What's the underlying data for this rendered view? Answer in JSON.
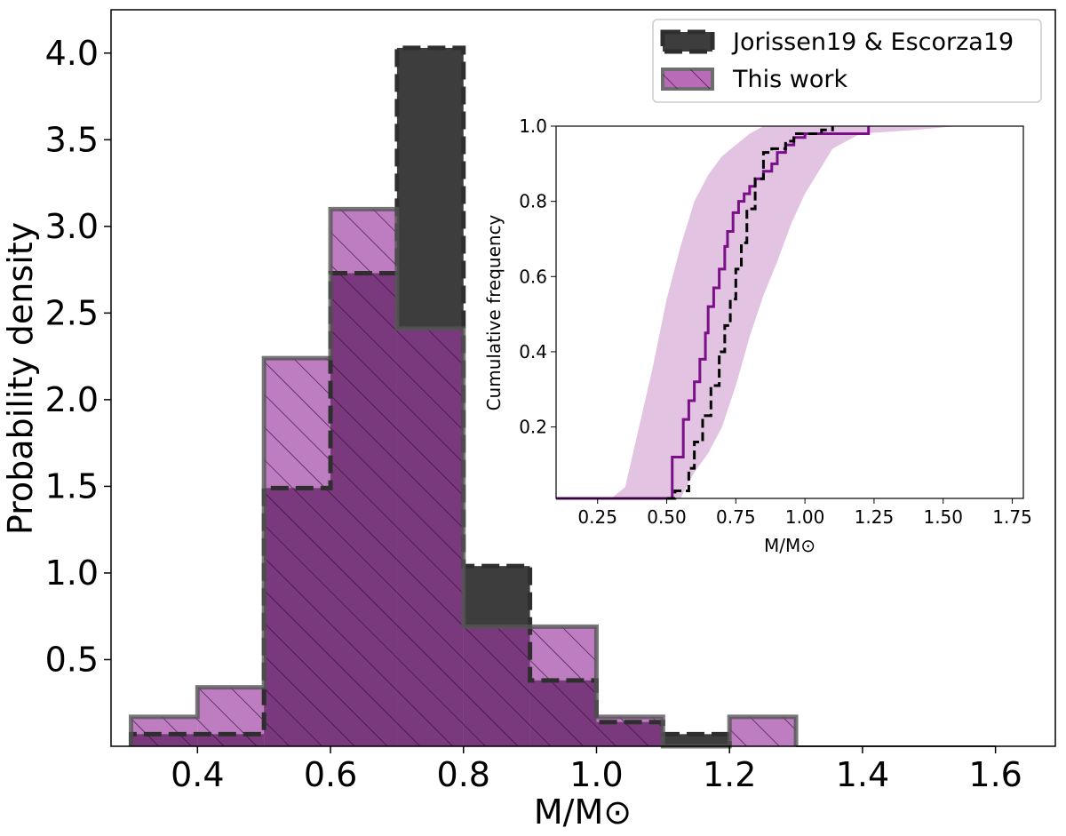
{
  "chart_data": [
    {
      "type": "histogram",
      "title": "",
      "xlabel": "M/M⊙",
      "ylabel": "Probability density",
      "xlim": [
        0.27,
        1.69
      ],
      "ylim": [
        0.0,
        4.25
      ],
      "xticks": [
        "0.4",
        "0.6",
        "0.8",
        "1.0",
        "1.2",
        "1.4",
        "1.6"
      ],
      "yticks": [
        "0.5",
        "1.0",
        "1.5",
        "2.0",
        "2.5",
        "3.0",
        "3.5",
        "4.0"
      ],
      "bin_edges": [
        0.3,
        0.4,
        0.5,
        0.6,
        0.7,
        0.8,
        0.9,
        1.0,
        1.1,
        1.2,
        1.3,
        1.4,
        1.5,
        1.6
      ],
      "series": [
        {
          "name": "Jorissen19 & Escorza19",
          "style": "dashed outline, dark grey fill",
          "color": "#3d3d3d",
          "values": [
            0.07,
            0.07,
            1.49,
            2.73,
            4.03,
            1.04,
            0.38,
            0.14,
            0.07,
            0.0,
            0.0,
            0.0,
            0.0
          ]
        },
        {
          "name": "This work",
          "style": "hatched, purple fill",
          "color": "#9b35a0",
          "values": [
            0.17,
            0.34,
            2.24,
            3.1,
            2.41,
            0.69,
            0.69,
            0.17,
            0.0,
            0.17,
            0.0,
            0.0,
            0.0
          ]
        }
      ],
      "legend": "top-right"
    },
    {
      "type": "line",
      "title": "",
      "xlabel": "M/M⊙",
      "ylabel": "Cumulative frequency",
      "xlim": [
        0.1,
        1.79
      ],
      "ylim": [
        0.01,
        1.0
      ],
      "xticks": [
        "0.25",
        "0.50",
        "0.75",
        "1.00",
        "1.25",
        "1.50",
        "1.75"
      ],
      "yticks": [
        "0.2",
        "0.4",
        "0.6",
        "0.8",
        "1.0"
      ],
      "series": [
        {
          "name": "This work",
          "style": "solid purple line",
          "color": "#7a0f88",
          "x": [
            0.1,
            0.47,
            0.52,
            0.56,
            0.58,
            0.6,
            0.62,
            0.64,
            0.65,
            0.67,
            0.69,
            0.71,
            0.72,
            0.74,
            0.76,
            0.78,
            0.8,
            0.82,
            0.85,
            0.88,
            0.9,
            0.93,
            0.96,
            1.0,
            1.1,
            1.2,
            1.23
          ],
          "y": [
            0.01,
            0.01,
            0.12,
            0.22,
            0.27,
            0.32,
            0.38,
            0.45,
            0.52,
            0.57,
            0.62,
            0.68,
            0.72,
            0.77,
            0.8,
            0.82,
            0.84,
            0.86,
            0.88,
            0.9,
            0.93,
            0.95,
            0.97,
            0.98,
            0.98,
            0.98,
            1.0
          ]
        },
        {
          "name": "Jorissen19 & Escorza19",
          "style": "dashed black line",
          "color": "#000000",
          "x": [
            0.5,
            0.53,
            0.58,
            0.6,
            0.63,
            0.66,
            0.69,
            0.71,
            0.73,
            0.75,
            0.77,
            0.79,
            0.82,
            0.85,
            0.88,
            0.9,
            0.93,
            0.96,
            1.0,
            1.03,
            1.06,
            1.1
          ],
          "y": [
            0.01,
            0.03,
            0.09,
            0.16,
            0.23,
            0.31,
            0.4,
            0.47,
            0.54,
            0.62,
            0.69,
            0.78,
            0.86,
            0.93,
            0.94,
            0.94,
            0.96,
            0.98,
            0.98,
            0.98,
            0.99,
            1.0
          ]
        },
        {
          "name": "uncertainty band",
          "style": "light purple shaded region",
          "color": "#e2c3e2",
          "x": [
            0.1,
            0.3,
            0.35,
            0.4,
            0.45,
            0.5,
            0.55,
            0.6,
            0.65,
            0.7,
            0.75,
            0.8,
            0.85,
            0.9,
            0.95,
            1.0,
            1.05,
            1.1,
            1.2,
            1.4,
            1.55,
            1.65
          ],
          "lower": [
            0.01,
            0.01,
            0.01,
            0.01,
            0.01,
            0.01,
            0.01,
            0.08,
            0.13,
            0.2,
            0.31,
            0.44,
            0.55,
            0.64,
            0.74,
            0.82,
            0.88,
            0.94,
            0.98,
            0.99,
            1.0,
            1.0
          ],
          "upper": [
            0.01,
            0.01,
            0.04,
            0.2,
            0.36,
            0.54,
            0.68,
            0.8,
            0.87,
            0.92,
            0.95,
            0.98,
            1.0,
            1.0,
            1.0,
            1.0,
            1.0,
            1.0,
            1.0,
            1.0,
            1.0,
            1.0
          ]
        }
      ]
    }
  ]
}
